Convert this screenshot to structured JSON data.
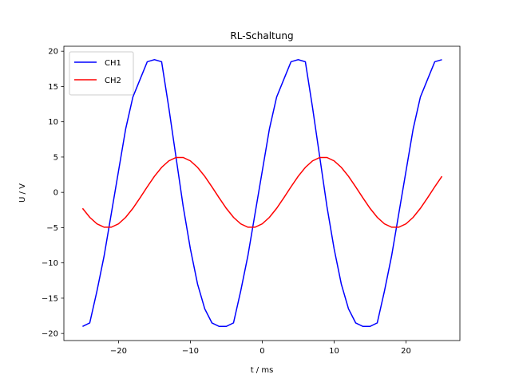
{
  "chart_data": {
    "type": "line",
    "title": "RL-Schaltung",
    "xlabel": "t / ms",
    "ylabel": "U / V",
    "x": [
      -25,
      -24,
      -23,
      -22,
      -21,
      -20,
      -19,
      -18,
      -17,
      -16,
      -15,
      -14,
      -13,
      -12,
      -11,
      -10,
      -9,
      -8,
      -7,
      -6,
      -5,
      -4,
      -3,
      -2,
      -1,
      0,
      1,
      2,
      3,
      4,
      5,
      6,
      7,
      8,
      9,
      10,
      11,
      12,
      13,
      14,
      15,
      16,
      17,
      18,
      19,
      20,
      21,
      22,
      23,
      24,
      25
    ],
    "series": [
      {
        "name": "CH1",
        "color": "#0000ff",
        "values": [
          -19,
          -18.5,
          -14,
          -9,
          -3,
          3,
          9,
          13.5,
          16,
          18.5,
          18.8,
          18.5,
          12,
          5,
          -2,
          -8,
          -13,
          -16.5,
          -18.5,
          -19,
          -19,
          -18.5,
          -14,
          -9,
          -3,
          3,
          9,
          13.5,
          16,
          18.5,
          18.8,
          18.5,
          12,
          5,
          -2,
          -8,
          -13,
          -16.5,
          -18.5,
          -19,
          -19,
          -18.5,
          -14,
          -9,
          -3,
          3,
          9,
          13.5,
          16,
          18.5,
          18.8
        ]
      },
      {
        "name": "CH2",
        "color": "#ff0000",
        "values": [
          -2.27,
          -3.54,
          -4.46,
          -4.94,
          -4.94,
          -4.46,
          -3.54,
          -2.27,
          -0.78,
          0.78,
          2.27,
          3.54,
          4.46,
          4.94,
          4.94,
          4.46,
          3.54,
          2.27,
          0.78,
          -0.78,
          -2.27,
          -3.54,
          -4.46,
          -4.94,
          -4.94,
          -4.46,
          -3.54,
          -2.27,
          -0.78,
          0.78,
          2.27,
          3.54,
          4.46,
          4.94,
          4.94,
          4.46,
          3.54,
          2.27,
          0.78,
          -0.78,
          -2.27,
          -3.54,
          -4.46,
          -4.94,
          -4.94,
          -4.46,
          -3.54,
          -2.27,
          -0.78,
          0.78,
          2.27
        ]
      }
    ],
    "xlim": [
      -27.6,
      27.5
    ],
    "ylim": [
      -21,
      20.7
    ],
    "xticks": [
      {
        "value": -20,
        "label": "−20"
      },
      {
        "value": -10,
        "label": "−10"
      },
      0,
      10,
      20
    ],
    "yticks": [
      {
        "value": -20,
        "label": "−20"
      },
      {
        "value": -15,
        "label": "−15"
      },
      {
        "value": -10,
        "label": "−10"
      },
      {
        "value": -5,
        "label": "−5"
      },
      0,
      5,
      10,
      15,
      20
    ],
    "grid": false,
    "legend": "upper-left"
  }
}
